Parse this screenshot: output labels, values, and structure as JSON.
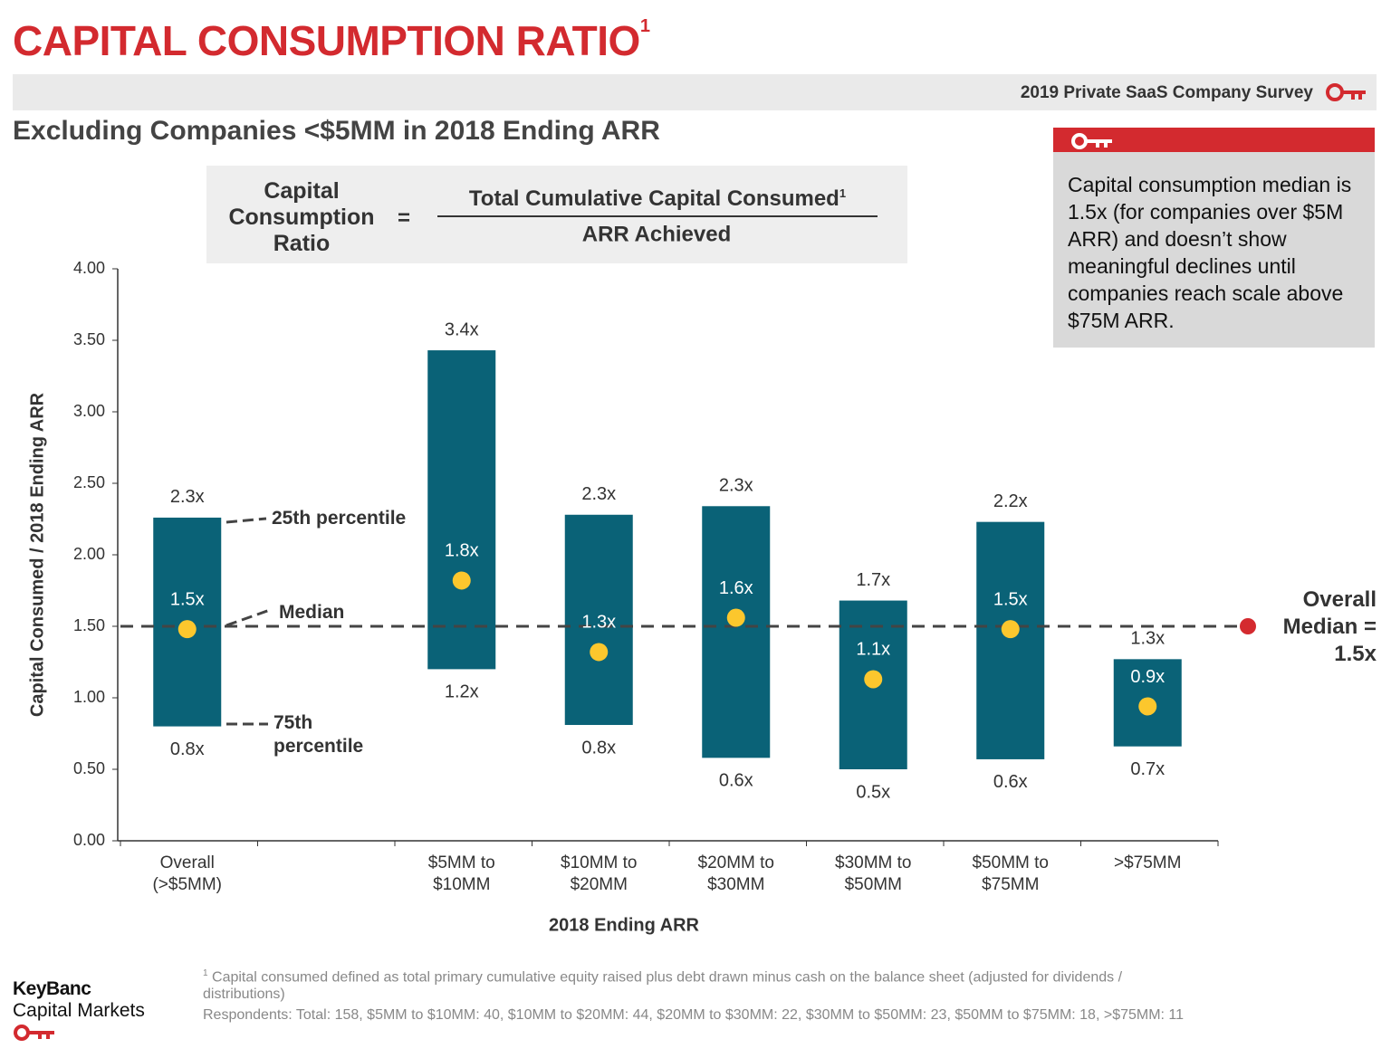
{
  "header": {
    "title": "CAPITAL CONSUMPTION RATIO",
    "title_note": "1",
    "survey": "2019 Private SaaS Company Survey"
  },
  "formula": {
    "left": "Capital Consumption Ratio",
    "equals": "=",
    "numerator": "Total Cumulative Capital Consumed",
    "numerator_note": "1",
    "denominator": "ARR Achieved"
  },
  "callout": "Capital consumption median is 1.5x (for companies over $5M ARR) and doesn’t show meaningful declines until companies reach scale above $75M ARR.",
  "footnotes": {
    "note_mark": "1",
    "note": "Capital consumed defined as total primary cumulative equity raised plus debt drawn minus cash on the balance sheet (adjusted for dividends / distributions)",
    "respondents": "Respondents: Total: 158, $5MM to $10MM: 40, $10MM to $20MM: 44, $20MM to $30MM: 22, $30MM to $50MM: 23, $50MM to $75MM: 18, >$75MM: 11"
  },
  "logo": {
    "line1": "KeyBanc",
    "line2": "Capital Markets"
  },
  "chart_data": {
    "type": "range_bar",
    "subtitle": "Excluding Companies <$5MM in 2018 Ending ARR",
    "x_label": "2018 Ending ARR",
    "y_label": "Capital Consumed / 2018 Ending ARR",
    "categories": [
      [
        "Overall",
        "(>$5MM)"
      ],
      null,
      [
        "$5MM to",
        "$10MM"
      ],
      [
        "$10MM to",
        "$20MM"
      ],
      [
        "$20MM to",
        "$30MM"
      ],
      [
        "$30MM to",
        "$50MM"
      ],
      [
        "$50MM to",
        "$75MM"
      ],
      [
        ">$75MM"
      ]
    ],
    "series": [
      {
        "name": "25th percentile",
        "color": "#0a6277",
        "values": [
          2.26,
          null,
          3.43,
          2.28,
          2.34,
          1.68,
          2.23,
          1.27
        ],
        "value_labels": [
          "2.3x",
          null,
          "3.4x",
          "2.3x",
          "2.3x",
          "1.7x",
          "2.2x",
          "1.3x"
        ]
      },
      {
        "name": "Median",
        "color": "#fcc72d",
        "values": [
          1.48,
          null,
          1.82,
          1.32,
          1.56,
          1.13,
          1.48,
          0.94
        ],
        "value_labels": [
          "1.5x",
          null,
          "1.8x",
          "1.3x",
          "1.6x",
          "1.1x",
          "1.5x",
          "0.9x"
        ]
      },
      {
        "name": "75th percentile",
        "color": "#0a6277",
        "values": [
          0.8,
          null,
          1.2,
          0.81,
          0.58,
          0.5,
          0.57,
          0.66
        ],
        "value_labels": [
          "0.8x",
          null,
          "1.2x",
          "0.8x",
          "0.6x",
          "0.5x",
          "0.6x",
          "0.7x"
        ]
      }
    ],
    "overall_median": {
      "value": 1.5,
      "label": "Overall Median = 1.5x",
      "color": "#d42a2f"
    },
    "ylim": [
      0,
      4
    ],
    "yticks": [
      {
        "value": 0,
        "label": "0.00"
      },
      {
        "value": 0.5,
        "label": "0.50"
      },
      {
        "value": 1,
        "label": "1.00"
      },
      {
        "value": 1.5,
        "label": "1.50"
      },
      {
        "value": 2,
        "label": "2.00"
      },
      {
        "value": 2.5,
        "label": "2.50"
      },
      {
        "value": 3,
        "label": "3.00"
      },
      {
        "value": 3.5,
        "label": "3.50"
      },
      {
        "value": 4,
        "label": "4.00"
      }
    ]
  }
}
